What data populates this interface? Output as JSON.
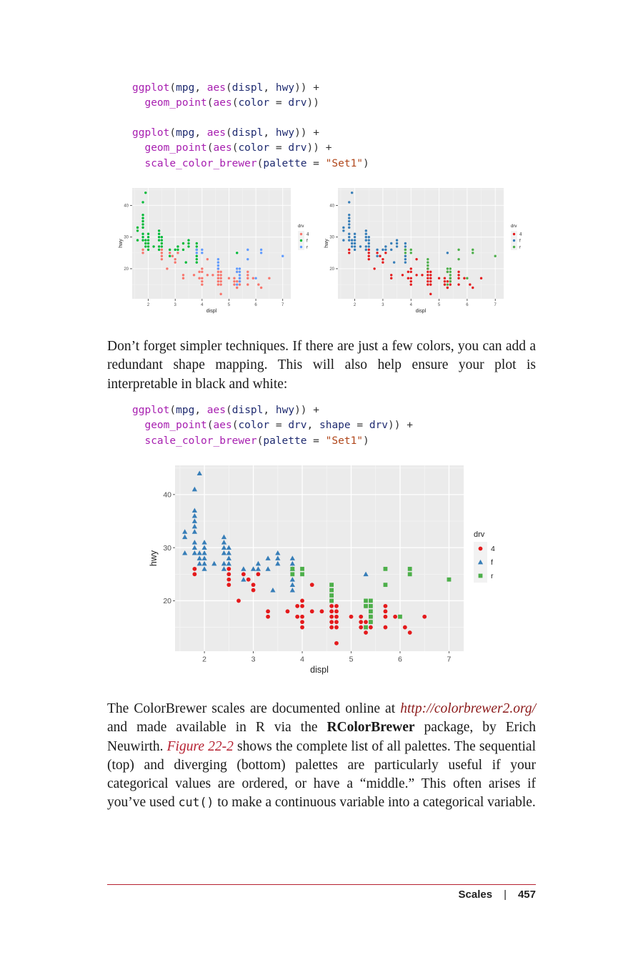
{
  "code": {
    "block1": [
      "ggplot(mpg, aes(displ, hwy)) +",
      "  geom_point(aes(color = drv))"
    ],
    "block2": [
      "ggplot(mpg, aes(displ, hwy)) +",
      "  geom_point(aes(color = drv)) +",
      "  scale_color_brewer(palette = \"Set1\")"
    ],
    "block3": [
      "ggplot(mpg, aes(displ, hwy)) +",
      "  geom_point(aes(color = drv, shape = drv)) +",
      "  scale_color_brewer(palette = \"Set1\")"
    ]
  },
  "para1": "Don’t forget simpler techniques. If there are just a few colors, you can add a redundant shape mapping. This will also help ensure your plot is interpretable in black and white:",
  "para2": {
    "t1": "The ColorBrewer scales are documented online at ",
    "link": "http://colorbrewer2.org/",
    "t2": " and made available in R via the ",
    "pkg": "RColorBrewer",
    "t3": " package, by Erich Neuwirth. ",
    "figref": "Figure 22-2",
    "t4": " shows the complete list of all palettes. The sequential (top) and diverging (bottom) palettes are particularly useful if your categorical values are ordered, or have a “middle.” This often arises if you’ve used ",
    "code": "cut()",
    "t5": " to make a continuous variable into a categorical variable."
  },
  "footer": {
    "section": "Scales",
    "page": "457"
  },
  "chart_data": [
    {
      "type": "scatter",
      "xlabel": "displ",
      "ylabel": "hwy",
      "xticks": [
        2,
        3,
        4,
        5,
        6,
        7
      ],
      "yticks": [
        20,
        30,
        40
      ],
      "xlim": [
        1.4,
        7.3
      ],
      "ylim": [
        10.5,
        45.5
      ],
      "legend_title": "drv",
      "legend_labels": [
        "4",
        "f",
        "r"
      ],
      "legend_placement": "right",
      "colors": [
        "#f8766d",
        "#00ba38",
        "#619cff"
      ],
      "grid": true
    },
    {
      "type": "scatter",
      "xlabel": "displ",
      "ylabel": "hwy",
      "xticks": [
        2,
        3,
        4,
        5,
        6,
        7
      ],
      "yticks": [
        20,
        30,
        40
      ],
      "xlim": [
        1.4,
        7.3
      ],
      "ylim": [
        10.5,
        45.5
      ],
      "legend_title": "drv",
      "legend_labels": [
        "4",
        "f",
        "r"
      ],
      "legend_placement": "right",
      "colors": [
        "#e41a1c",
        "#377eb8",
        "#4daf4a"
      ],
      "grid": true
    },
    {
      "type": "scatter",
      "xlabel": "displ",
      "ylabel": "hwy",
      "xticks": [
        2,
        3,
        4,
        5,
        6,
        7
      ],
      "yticks": [
        20,
        30,
        40
      ],
      "xlim": [
        1.4,
        7.3
      ],
      "ylim": [
        10.5,
        45.5
      ],
      "legend_title": "drv",
      "legend_labels": [
        "4",
        "f",
        "r"
      ],
      "legend_placement": "right",
      "colors": [
        "#e41a1c",
        "#377eb8",
        "#4daf4a"
      ],
      "shapes": [
        "circle",
        "triangle",
        "square"
      ],
      "grid": true
    }
  ],
  "points": {
    "four": [
      [
        1.8,
        26
      ],
      [
        1.8,
        25
      ],
      [
        2.5,
        26
      ],
      [
        2.5,
        25
      ],
      [
        2.5,
        24
      ],
      [
        2.5,
        23
      ],
      [
        2.7,
        20
      ],
      [
        2.8,
        25
      ],
      [
        3.0,
        22
      ],
      [
        3.1,
        25
      ],
      [
        3.3,
        17
      ],
      [
        3.3,
        18
      ],
      [
        3.7,
        18
      ],
      [
        3.9,
        19
      ],
      [
        3.9,
        17
      ],
      [
        4.0,
        20
      ],
      [
        4.0,
        19
      ],
      [
        4.0,
        17
      ],
      [
        4.0,
        16
      ],
      [
        4.0,
        15
      ],
      [
        4.2,
        23
      ],
      [
        4.2,
        18
      ],
      [
        4.4,
        18
      ],
      [
        4.6,
        17
      ],
      [
        4.6,
        16
      ],
      [
        4.6,
        15
      ],
      [
        4.6,
        19
      ],
      [
        4.7,
        19
      ],
      [
        4.7,
        18
      ],
      [
        4.7,
        17
      ],
      [
        4.7,
        16
      ],
      [
        4.7,
        15
      ],
      [
        4.7,
        12
      ],
      [
        5.0,
        17
      ],
      [
        5.2,
        17
      ],
      [
        5.2,
        16
      ],
      [
        5.2,
        15
      ],
      [
        5.3,
        19
      ],
      [
        5.3,
        16
      ],
      [
        5.3,
        14
      ],
      [
        5.4,
        17
      ],
      [
        5.4,
        16
      ],
      [
        5.4,
        15
      ],
      [
        5.7,
        18
      ],
      [
        5.7,
        17
      ],
      [
        5.7,
        15
      ],
      [
        5.9,
        17
      ],
      [
        6.1,
        15
      ],
      [
        6.2,
        14
      ],
      [
        6.5,
        17
      ],
      [
        2.9,
        24
      ],
      [
        3.0,
        23
      ],
      [
        4.6,
        20
      ],
      [
        4.6,
        18
      ],
      [
        5.7,
        19
      ]
    ],
    "f": [
      [
        1.6,
        33
      ],
      [
        1.6,
        32
      ],
      [
        1.6,
        29
      ],
      [
        1.8,
        29
      ],
      [
        1.8,
        31
      ],
      [
        1.8,
        30
      ],
      [
        1.8,
        33
      ],
      [
        1.8,
        34
      ],
      [
        1.8,
        35
      ],
      [
        1.8,
        36
      ],
      [
        1.8,
        37
      ],
      [
        1.8,
        41
      ],
      [
        1.9,
        44
      ],
      [
        1.9,
        29
      ],
      [
        1.9,
        28
      ],
      [
        1.9,
        27
      ],
      [
        2.0,
        29
      ],
      [
        2.0,
        30
      ],
      [
        2.0,
        28
      ],
      [
        2.0,
        27
      ],
      [
        2.0,
        26
      ],
      [
        2.0,
        31
      ],
      [
        2.2,
        27
      ],
      [
        2.4,
        32
      ],
      [
        2.4,
        30
      ],
      [
        2.4,
        29
      ],
      [
        2.4,
        27
      ],
      [
        2.4,
        26
      ],
      [
        2.4,
        31
      ],
      [
        2.5,
        29
      ],
      [
        2.5,
        30
      ],
      [
        2.5,
        28
      ],
      [
        2.5,
        27
      ],
      [
        2.8,
        26
      ],
      [
        2.8,
        24
      ],
      [
        3.0,
        26
      ],
      [
        3.1,
        27
      ],
      [
        3.1,
        26
      ],
      [
        3.3,
        28
      ],
      [
        3.3,
        26
      ],
      [
        3.5,
        29
      ],
      [
        3.5,
        28
      ],
      [
        3.5,
        27
      ],
      [
        3.8,
        28
      ],
      [
        3.8,
        27
      ],
      [
        3.8,
        26
      ],
      [
        3.8,
        24
      ],
      [
        3.8,
        23
      ],
      [
        3.8,
        22
      ],
      [
        3.4,
        22
      ],
      [
        5.3,
        25
      ]
    ],
    "r": [
      [
        3.8,
        26
      ],
      [
        3.8,
        25
      ],
      [
        4.0,
        26
      ],
      [
        4.0,
        25
      ],
      [
        4.6,
        23
      ],
      [
        4.6,
        22
      ],
      [
        4.6,
        21
      ],
      [
        4.6,
        20
      ],
      [
        5.3,
        20
      ],
      [
        5.4,
        20
      ],
      [
        5.4,
        19
      ],
      [
        5.4,
        18
      ],
      [
        5.4,
        17
      ],
      [
        5.4,
        16
      ],
      [
        5.3,
        15
      ],
      [
        5.7,
        26
      ],
      [
        5.7,
        23
      ],
      [
        6.0,
        17
      ],
      [
        6.2,
        26
      ],
      [
        6.2,
        25
      ],
      [
        7.0,
        24
      ],
      [
        5.3,
        19
      ]
    ]
  }
}
